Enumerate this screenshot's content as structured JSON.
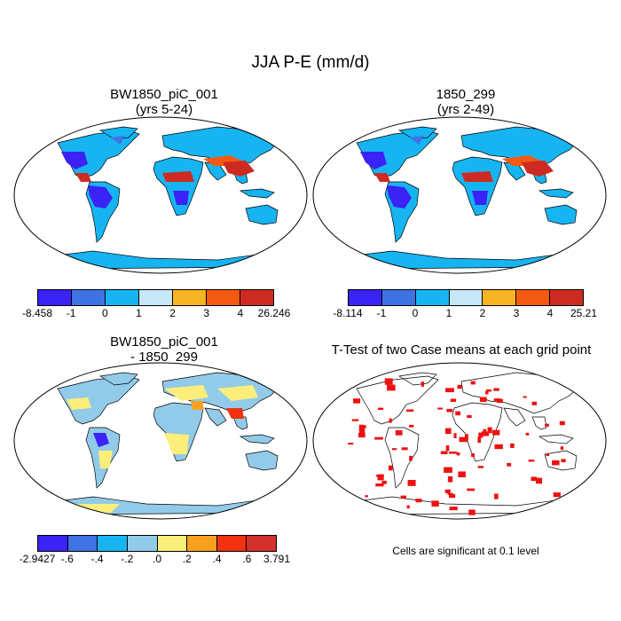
{
  "figure": {
    "title": "JJA P-E (mm/d)",
    "note": "Cells are significant at 0.1 level"
  },
  "panels": [
    {
      "id": "case1",
      "title_lines": [
        "BW1850_piC_001",
        "(yrs 5-24)"
      ],
      "map_style": "climatology",
      "colorbar": {
        "colors": [
          "#3b22f5",
          "#3f72e3",
          "#17b4f2",
          "#c7e6f6",
          "#f9b423",
          "#f45a12",
          "#cd2b22"
        ],
        "labels": [
          "-8.458",
          "-1",
          "0",
          "1",
          "2",
          "3",
          "4",
          "26.246"
        ]
      }
    },
    {
      "id": "case2",
      "title_lines": [
        "1850_299",
        "(yrs 2-49)"
      ],
      "map_style": "climatology",
      "colorbar": {
        "colors": [
          "#3b22f5",
          "#3f72e3",
          "#17b4f2",
          "#c7e6f6",
          "#f9b423",
          "#f45a12",
          "#cd2b22"
        ],
        "labels": [
          "-8.114",
          "-1",
          "0",
          "1",
          "2",
          "3",
          "4",
          "25.21"
        ]
      }
    },
    {
      "id": "difference",
      "title_lines": [
        "BW1850_piC_001",
        "- 1850_299"
      ],
      "map_style": "difference",
      "colorbar": {
        "colors": [
          "#3b22f5",
          "#3f72e3",
          "#17b4f2",
          "#92cbe9",
          "#fbee7a",
          "#f9a11f",
          "#f1310f",
          "#d3302b"
        ],
        "labels": [
          "-2.9427",
          "-.6",
          "-.4",
          "-.2",
          ".0",
          ".2",
          ".4",
          ".6",
          "3.791"
        ]
      }
    },
    {
      "id": "ttest",
      "title_lines": [
        "T-Test of two Case means at each grid point"
      ],
      "map_style": "significance"
    }
  ]
}
